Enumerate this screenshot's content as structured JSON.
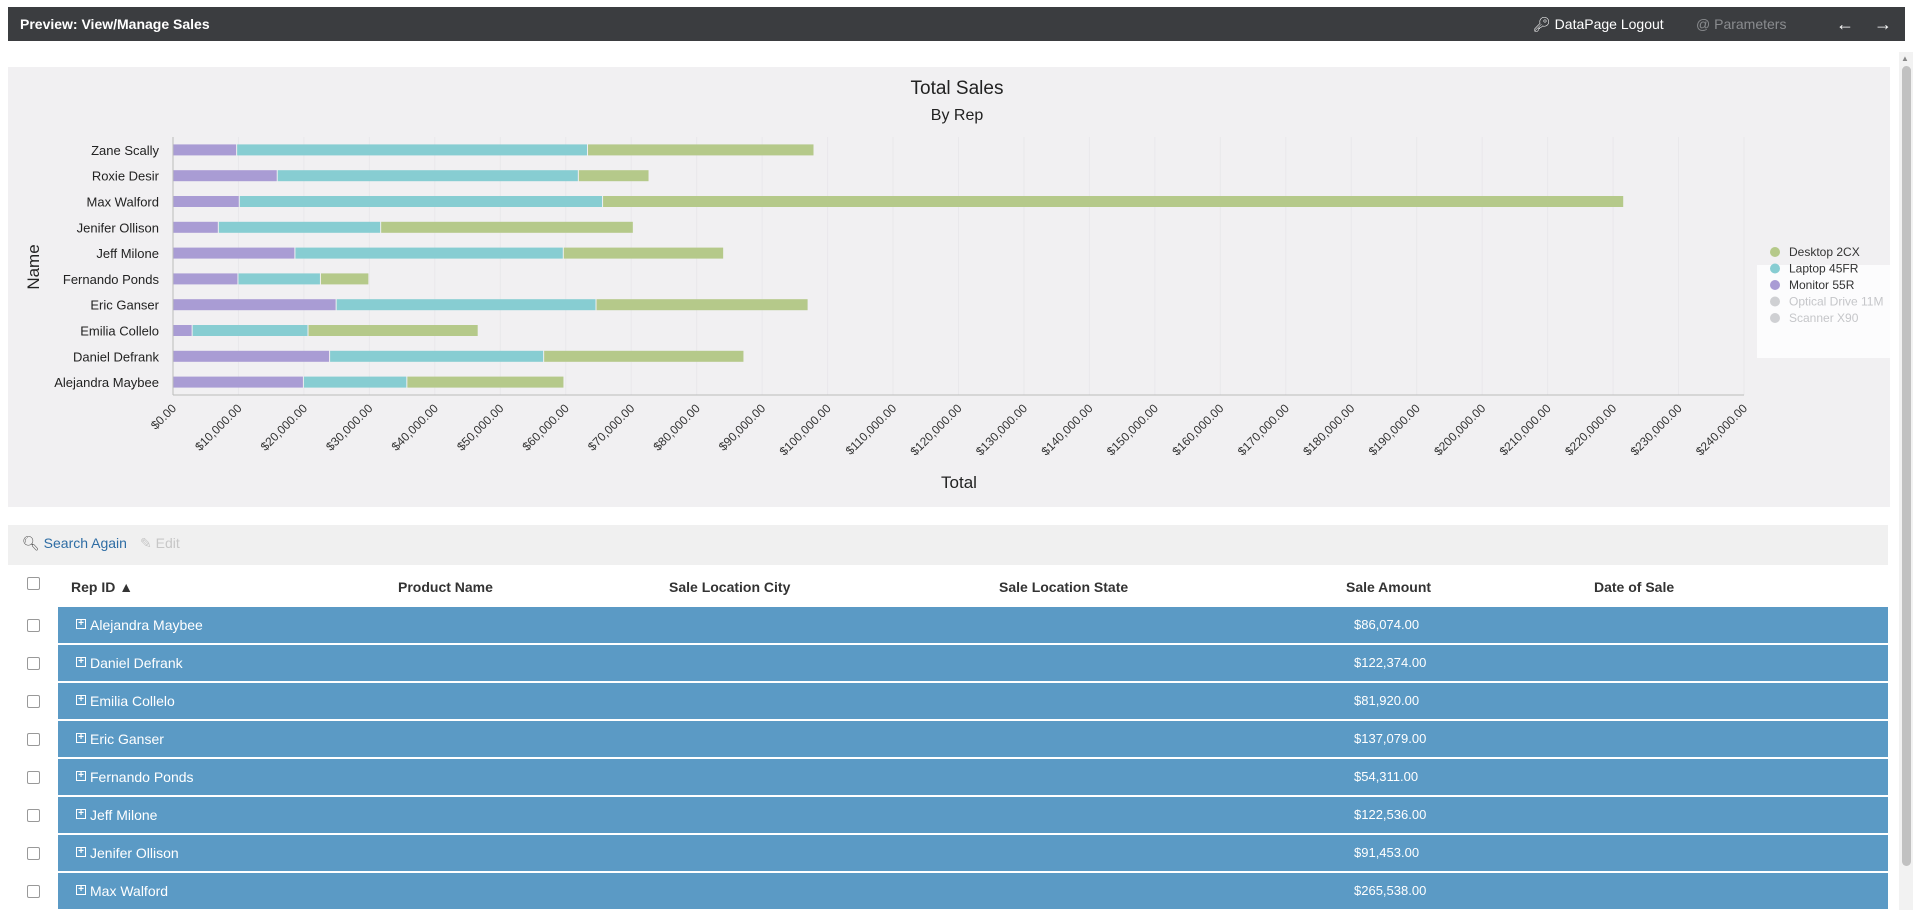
{
  "window": {
    "title": "Preview: View/Manage Sales",
    "logout_label": "DataPage Logout",
    "parameters_label": "Parameters"
  },
  "chart_data": {
    "type": "bar",
    "orientation": "horizontal",
    "stacked": true,
    "title": "Total Sales",
    "subtitle": "By Rep",
    "xlabel": "Total",
    "ylabel": "Name",
    "xlim": [
      0,
      240000
    ],
    "x_ticks": [
      "$0.00",
      "$10,000.00",
      "$20,000.00",
      "$30,000.00",
      "$40,000.00",
      "$50,000.00",
      "$60,000.00",
      "$70,000.00",
      "$80,000.00",
      "$90,000.00",
      "$100,000.00",
      "$110,000.00",
      "$120,000.00",
      "$130,000.00",
      "$140,000.00",
      "$150,000.00",
      "$160,000.00",
      "$170,000.00",
      "$180,000.00",
      "$190,000.00",
      "$200,000.00",
      "$210,000.00",
      "$220,000.00",
      "$230,000.00",
      "$240,000.00"
    ],
    "x_tick_values": [
      0,
      10000,
      20000,
      30000,
      40000,
      50000,
      60000,
      70000,
      80000,
      90000,
      100000,
      110000,
      120000,
      130000,
      140000,
      150000,
      160000,
      170000,
      180000,
      190000,
      200000,
      210000,
      220000,
      230000,
      240000
    ],
    "categories": [
      "Zane Scally",
      "Roxie Desir",
      "Max Walford",
      "Jenifer Ollison",
      "Jeff Milone",
      "Fernando Ponds",
      "Eric Ganser",
      "Emilia Collelo",
      "Daniel Defrank",
      "Alejandra Maybee"
    ],
    "series": [
      {
        "name": "Monitor 55R",
        "color": "#a99cd4",
        "values": [
          9800,
          16000,
          10200,
          7000,
          18700,
          10000,
          25000,
          3000,
          24000,
          20000
        ]
      },
      {
        "name": "Laptop 45FR",
        "color": "#87cdd2",
        "values": [
          53600,
          46000,
          55500,
          24800,
          41000,
          12600,
          39700,
          17700,
          32700,
          15800
        ]
      },
      {
        "name": "Desktop 2CX",
        "color": "#b5c98a",
        "values": [
          34600,
          10800,
          156000,
          38600,
          24500,
          7400,
          32400,
          26000,
          30600,
          24000
        ]
      }
    ],
    "legend": {
      "placement": "right",
      "entries": [
        {
          "name": "Desktop 2CX",
          "color": "#b5c98a",
          "active": true
        },
        {
          "name": "Laptop 45FR",
          "color": "#87cdd2",
          "active": true
        },
        {
          "name": "Monitor 55R",
          "color": "#a99cd4",
          "active": true
        },
        {
          "name": "Optical Drive 11M",
          "color": "#cfd0d3",
          "active": false
        },
        {
          "name": "Scanner X90",
          "color": "#cfd0d3",
          "active": false
        }
      ]
    }
  },
  "toolbar": {
    "search_again_label": "Search Again",
    "edit_label": "Edit"
  },
  "table": {
    "columns": [
      {
        "label": "Rep ID ▲"
      },
      {
        "label": "Product Name"
      },
      {
        "label": "Sale Location City"
      },
      {
        "label": "Sale Location State"
      },
      {
        "label": "Sale Amount"
      },
      {
        "label": "Date of Sale"
      }
    ],
    "groups": [
      {
        "name": "Alejandra Maybee",
        "amount": "$86,074.00"
      },
      {
        "name": "Daniel Defrank",
        "amount": "$122,374.00"
      },
      {
        "name": "Emilia Collelo",
        "amount": "$81,920.00"
      },
      {
        "name": "Eric Ganser",
        "amount": "$137,079.00"
      },
      {
        "name": "Fernando Ponds",
        "amount": "$54,311.00"
      },
      {
        "name": "Jeff Milone",
        "amount": "$122,536.00"
      },
      {
        "name": "Jenifer Ollison",
        "amount": "$91,453.00"
      },
      {
        "name": "Max Walford",
        "amount": "$265,538.00"
      }
    ]
  }
}
